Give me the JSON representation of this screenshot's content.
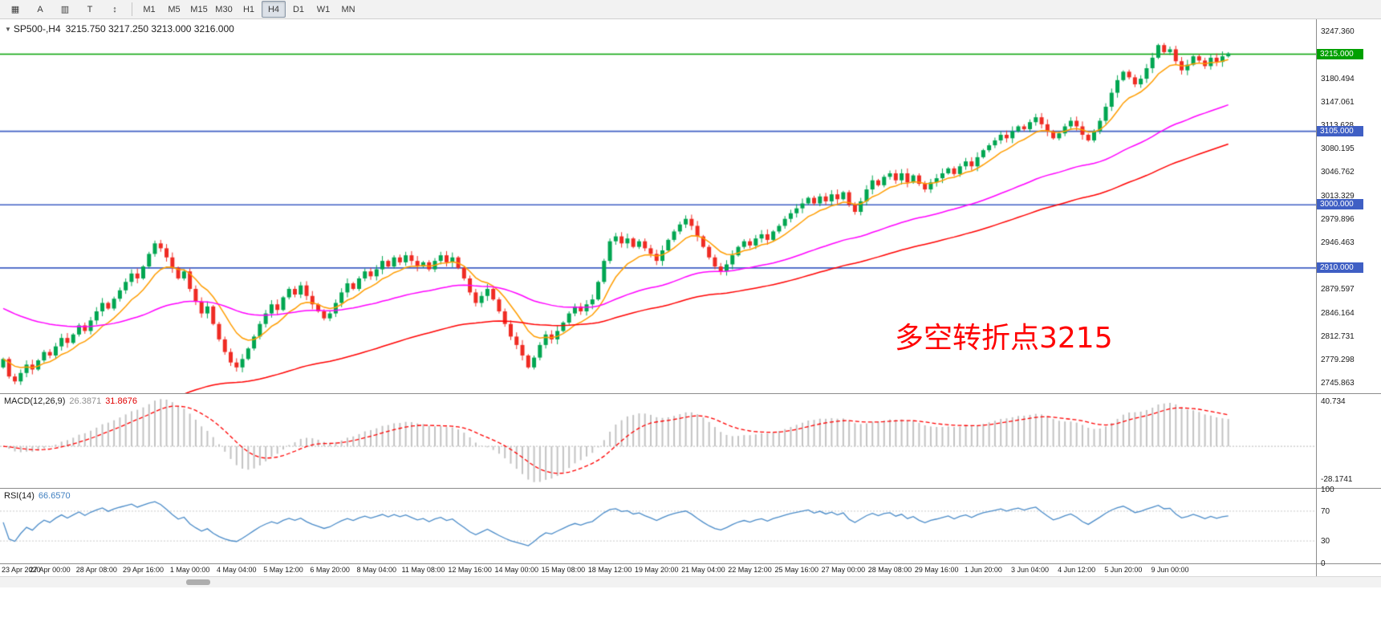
{
  "toolbar": {
    "icons": [
      {
        "name": "chart-list-icon",
        "glyph": "▦"
      },
      {
        "name": "text-annotation-icon",
        "glyph": "A"
      },
      {
        "name": "candlestick-view-icon",
        "glyph": "▥"
      },
      {
        "name": "template-icon",
        "glyph": "T"
      },
      {
        "name": "scale-toggle-icon",
        "glyph": "↕"
      }
    ],
    "timeframes": [
      "M1",
      "M5",
      "M15",
      "M30",
      "H1",
      "H4",
      "D1",
      "W1",
      "MN"
    ],
    "active_timeframe": "H4"
  },
  "chart": {
    "symbol_period": "SP500-,H4",
    "quote_line": "3215.750 3217.250 3213.000 3216.000"
  },
  "indicators": {
    "macd": {
      "name": "MACD(12,26,9)",
      "value_main": "26.3871",
      "value_signal": "31.8676",
      "axis_top": "40.734",
      "axis_bottom": "-28.1741"
    },
    "rsi": {
      "name": "RSI(14)",
      "value": "66.6570",
      "axis_labels": [
        "100",
        "70",
        "30",
        "0"
      ],
      "levels": [
        70,
        30
      ]
    }
  },
  "chart_data": {
    "type": "candlestick",
    "symbol": "SP500-",
    "timeframe": "H4",
    "ohlc_current": {
      "open": 3215.75,
      "high": 3217.25,
      "low": 3213.0,
      "close": 3216.0
    },
    "price_axis": {
      "min": 2738,
      "max": 3258,
      "ticks": [
        "3247.360",
        "3180.494",
        "3147.061",
        "3113.628",
        "3080.195",
        "3046.762",
        "3013.329",
        "2979.896",
        "2946.463",
        "2879.597",
        "2846.164",
        "2812.731",
        "2779.298",
        "2745.863"
      ]
    },
    "hlines": [
      {
        "price": 3215,
        "label": "3215.000",
        "color": "#00a000"
      },
      {
        "price": 3105,
        "label": "3105.000",
        "color": "#3f5fc4"
      },
      {
        "price": 3000,
        "label": "3000.000",
        "color": "#3f5fc4"
      },
      {
        "price": 2910,
        "label": "2910.000",
        "color": "#3f5fc4"
      }
    ],
    "ma_lines": [
      {
        "name": "fast-ma",
        "period": 9,
        "seed": null,
        "color": "#ff9d00"
      },
      {
        "name": "mid-ma",
        "period": 50,
        "seed": 2855,
        "color": "#ff00ff"
      },
      {
        "name": "slow-ma",
        "period": 90,
        "seed": 2600,
        "color": "#ff0000"
      }
    ],
    "closes": [
      2780,
      2755,
      2748,
      2760,
      2772,
      2765,
      2778,
      2790,
      2785,
      2798,
      2810,
      2803,
      2815,
      2828,
      2820,
      2835,
      2848,
      2860,
      2852,
      2866,
      2878,
      2890,
      2902,
      2895,
      2912,
      2930,
      2945,
      2938,
      2925,
      2910,
      2895,
      2905,
      2880,
      2862,
      2845,
      2855,
      2830,
      2808,
      2790,
      2775,
      2768,
      2780,
      2795,
      2812,
      2830,
      2845,
      2858,
      2850,
      2868,
      2880,
      2872,
      2885,
      2870,
      2858,
      2848,
      2838,
      2845,
      2860,
      2875,
      2888,
      2880,
      2895,
      2905,
      2898,
      2908,
      2920,
      2912,
      2925,
      2918,
      2928,
      2920,
      2912,
      2918,
      2908,
      2920,
      2928,
      2918,
      2925,
      2910,
      2895,
      2875,
      2860,
      2870,
      2880,
      2865,
      2848,
      2830,
      2812,
      2800,
      2785,
      2768,
      2782,
      2800,
      2815,
      2808,
      2820,
      2832,
      2845,
      2855,
      2848,
      2858,
      2865,
      2890,
      2920,
      2948,
      2955,
      2945,
      2952,
      2940,
      2948,
      2938,
      2930,
      2920,
      2935,
      2950,
      2962,
      2972,
      2980,
      2970,
      2955,
      2940,
      2925,
      2912,
      2905,
      2915,
      2928,
      2940,
      2948,
      2942,
      2952,
      2958,
      2950,
      2962,
      2970,
      2980,
      2988,
      2995,
      3002,
      3010,
      3002,
      3012,
      3005,
      3015,
      3008,
      3018,
      3000,
      2990,
      3005,
      3022,
      3035,
      3028,
      3040,
      3045,
      3035,
      3045,
      3032,
      3042,
      3030,
      3022,
      3032,
      3038,
      3045,
      3052,
      3044,
      3055,
      3062,
      3055,
      3068,
      3078,
      3085,
      3092,
      3100,
      3095,
      3105,
      3112,
      3108,
      3118,
      3125,
      3115,
      3105,
      3095,
      3102,
      3112,
      3120,
      3112,
      3100,
      3092,
      3105,
      3120,
      3140,
      3160,
      3178,
      3190,
      3182,
      3172,
      3180,
      3195,
      3210,
      3228,
      3218,
      3222,
      3205,
      3192,
      3200,
      3212,
      3206,
      3198,
      3210,
      3204,
      3212,
      3216
    ],
    "time_labels": [
      "23 Apr 2020",
      "27 Apr 00:00",
      "28 Apr 08:00",
      "29 Apr 16:00",
      "1 May 00:00",
      "4 May 04:00",
      "5 May 12:00",
      "6 May 20:00",
      "8 May 04:00",
      "11 May 08:00",
      "12 May 16:00",
      "14 May 00:00",
      "15 May 08:00",
      "18 May 12:00",
      "19 May 20:00",
      "21 May 04:00",
      "22 May 12:00",
      "25 May 16:00",
      "27 May 00:00",
      "28 May 08:00",
      "29 May 16:00",
      "1 Jun 20:00",
      "3 Jun 04:00",
      "4 Jun 12:00",
      "5 Jun 20:00",
      "9 Jun 00:00"
    ],
    "annotation": {
      "text": "多空转折点3215",
      "color": "#ff0000"
    },
    "colors": {
      "bull": "#00a651",
      "bear": "#ef2b23",
      "macd_hist": "#c2c2c2",
      "macd_signal": "#ff0000",
      "rsi_line": "#4a8bc8",
      "level_line": "#c8c8c8"
    }
  }
}
